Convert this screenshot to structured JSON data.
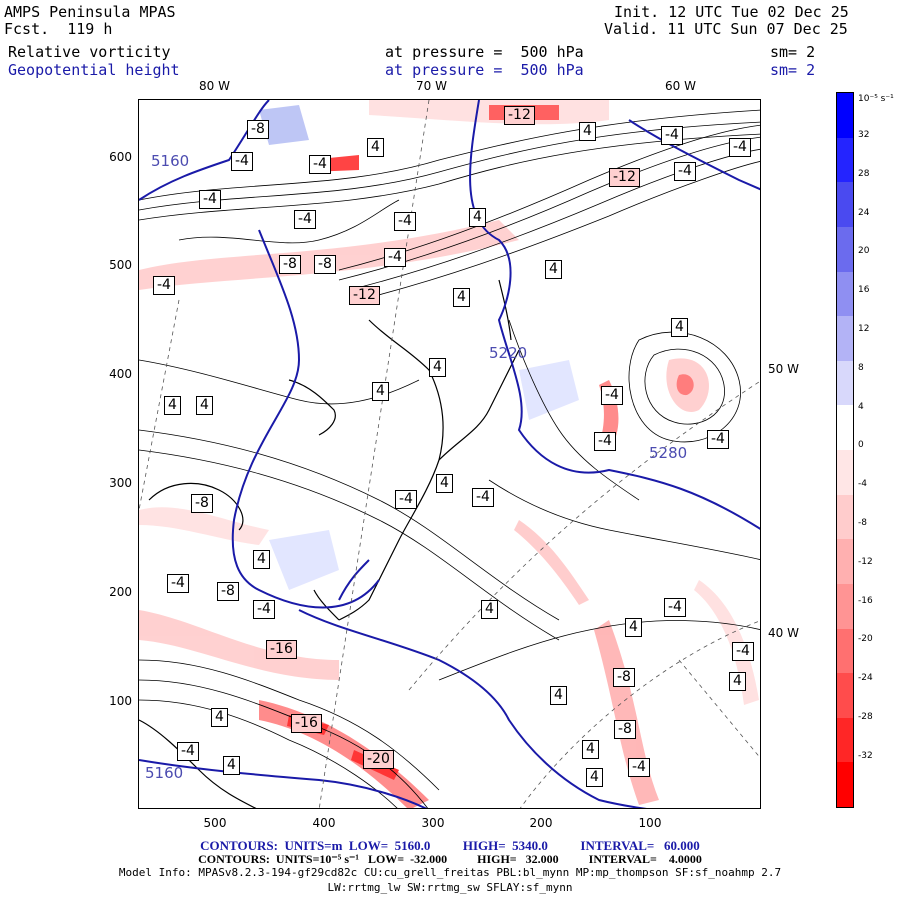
{
  "header": {
    "model": "AMPS Peninsula MPAS",
    "fcst": "Fcst.  119 h",
    "init": "Init. 12 UTC Tue 02 Dec 25",
    "valid": "Valid. 11 UTC Sun 07 Dec 25",
    "field1": "Relative vorticity",
    "field1_pressure": "at pressure =  500 hPa",
    "field1_sm": "sm= 2",
    "field2": "Geopotential height",
    "field2_pressure": "at pressure =  500 hPa",
    "field2_sm": "sm= 2"
  },
  "map": {
    "top_lon_labels": [
      "80 W",
      "70 W",
      "60 W"
    ],
    "right_lon_labels": [
      "50 W",
      "40 W"
    ],
    "y_ticks": [
      "600",
      "500",
      "400",
      "300",
      "200",
      "100"
    ],
    "x_ticks": [
      "500",
      "400",
      "300",
      "200",
      "100"
    ],
    "height_contour_labels": [
      "5160",
      "5160",
      "5220",
      "5280"
    ],
    "vorticity_labels": [
      {
        "t": "-8"
      },
      {
        "t": "4"
      },
      {
        "t": "-12"
      },
      {
        "t": "4"
      },
      {
        "t": "-4"
      },
      {
        "t": "-4"
      },
      {
        "t": "-4"
      },
      {
        "t": "-4"
      },
      {
        "t": "-12"
      },
      {
        "t": "-4"
      },
      {
        "t": "-4"
      },
      {
        "t": "4"
      },
      {
        "t": "-4"
      },
      {
        "t": "-4"
      },
      {
        "t": "-8"
      },
      {
        "t": "-8"
      },
      {
        "t": "-4"
      },
      {
        "t": "4"
      },
      {
        "t": "-4"
      },
      {
        "t": "-12"
      },
      {
        "t": "4"
      },
      {
        "t": "4"
      },
      {
        "t": "-4"
      },
      {
        "t": "4"
      },
      {
        "t": "-4"
      },
      {
        "t": "-4"
      },
      {
        "t": "4"
      },
      {
        "t": "4"
      },
      {
        "t": "-4"
      },
      {
        "t": "-8"
      },
      {
        "t": "4"
      },
      {
        "t": "4"
      },
      {
        "t": "-4"
      },
      {
        "t": "4"
      },
      {
        "t": "-4"
      },
      {
        "t": "-8"
      },
      {
        "t": "-4"
      },
      {
        "t": "4"
      },
      {
        "t": "-16"
      },
      {
        "t": "4"
      },
      {
        "t": "-4"
      },
      {
        "t": "-4"
      },
      {
        "t": "-8"
      },
      {
        "t": "4"
      },
      {
        "t": "-16"
      },
      {
        "t": "-4"
      },
      {
        "t": "4"
      },
      {
        "t": "4"
      },
      {
        "t": "-20"
      },
      {
        "t": "4"
      },
      {
        "t": "-8"
      },
      {
        "t": "4"
      },
      {
        "t": "4"
      },
      {
        "t": "-4"
      }
    ]
  },
  "colorbar": {
    "unit": "10⁻⁵ s⁻¹",
    "labels": [
      "32",
      "28",
      "24",
      "20",
      "16",
      "12",
      "8",
      "4",
      "0",
      "-4",
      "-8",
      "-12",
      "-16",
      "-20",
      "-24",
      "-28",
      "-32"
    ],
    "colors": [
      "#0000ff",
      "#2424ff",
      "#4a4af0",
      "#6b6bee",
      "#8f8ff2",
      "#b3b3f6",
      "#d8d8fb",
      "#ffffff",
      "#ffffff",
      "#ffe6e6",
      "#ffcccc",
      "#ffb0b0",
      "#ff9494",
      "#ff7070",
      "#ff4c4c",
      "#ff2626",
      "#ff0000"
    ]
  },
  "footer": {
    "line1": "CONTOURS:  UNITS=m  LOW=  5160.0          HIGH=  5340.0          INTERVAL=   60.000",
    "line2": "CONTOURS:  UNITS=10⁻⁵ s⁻¹   LOW=  -32.000          HIGH=   32.000          INTERVAL=    4.0000",
    "line3": "Model Info: MPASv8.2.3-194-gf29cd82c CU:cu_grell_freitas PBL:bl_mynn MP:mp_thompson SF:sf_noahmp 2.7",
    "line4": "LW:rrtmg_lw SW:rrtmg_sw SFLAY:sf_mynn"
  }
}
